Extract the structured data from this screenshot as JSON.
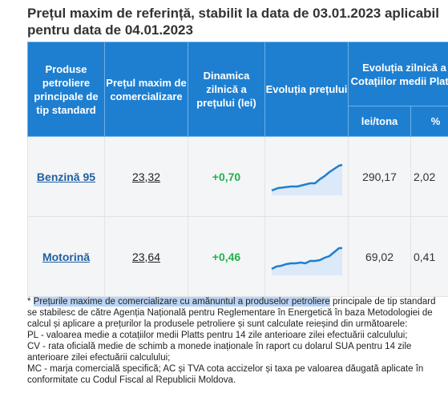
{
  "title": "Prețul maxim de referință, stabilit la data de 03.01.2023 aplicabil pentru data de 04.01.2023",
  "colors": {
    "header_bg": "#1e7fd1",
    "positive": "#22b14c",
    "link": "#1f5f9f",
    "chart_line": "#1e7fd1"
  },
  "table": {
    "headers": {
      "product": "Produse petroliere principale de tip standard",
      "max_price": "Prețul maxim de comercializare",
      "dynamics": "Dinamica zilnică a prețului (lei)",
      "evolution": "Evoluția prețului",
      "platts": "Evoluția zilnică a Cotațiilor medii Platts",
      "lei_tona": "lei/tona",
      "percent": "%"
    },
    "rows": [
      {
        "product": "Benzină 95",
        "price": "23,32",
        "change": "+0,70",
        "lei_tona": "290,17",
        "percent": "2,02",
        "spark_icon": "line-area-sparkline"
      },
      {
        "product": "Motorină",
        "price": "23,64",
        "change": "+0,46",
        "lei_tona": "69,02",
        "percent": "0,41",
        "spark_icon": "line-area-sparkline"
      }
    ]
  },
  "footnote": {
    "highlighted": "Prețurile maxime de comercializare cu amănuntul a produselor petroliere",
    "line1_rest": " principale de tip standard se stabilesc de către Agenția Națională pentru Reglementare în Energetică în baza Metodologiei de calcul și aplicare a prețurilor la produsele petroliere și sunt calculate reieșind din următoarele:",
    "pl": "PL - valoarea medie a cotațiilor medii Platts pentru 14 zile anterioare zilei efectuării calculului;",
    "cv": "CV - rata oficială medie de schimb a monede inaționale în raport cu dolarul SUA pentru 14 zile anterioare zilei efectuării calculului;",
    "mc": "MC - marja comercială specifică; AC și TVA cota accizelor și taxa pe valoarea dăugată aplicate în conformitate cu Codul Fiscal al Republicii Moldova."
  }
}
